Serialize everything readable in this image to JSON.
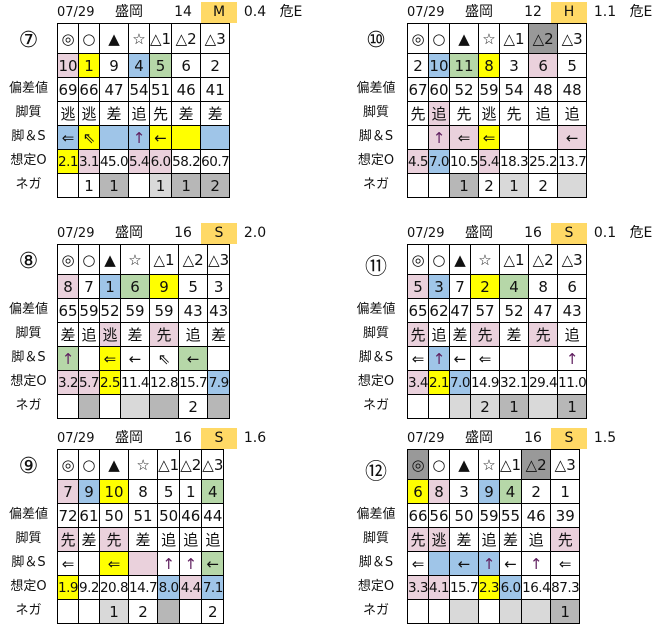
{
  "colors": {
    "p": "#ead1dc",
    "y": "#ffff00",
    "b": "#9fc5e8",
    "g": "#b6d7a8",
    "d": "#999999",
    "m": "#b7b7b7",
    "l": "#d9d9d9",
    "grade": "#ffd966"
  },
  "row_labels": [
    "偏差値",
    "脚質",
    "脚＆S",
    "想定O",
    "ネガ"
  ],
  "symbols": [
    "◎",
    "○",
    "▲",
    "☆",
    "△1",
    "△2",
    "△3"
  ],
  "panels": [
    {
      "race": "⑦",
      "date": "07/29",
      "venue": "盛岡",
      "count": "14",
      "grade": "M",
      "value": "0.4",
      "risk": "危E",
      "sym_colors": [
        "",
        "",
        "",
        "",
        "",
        "",
        ""
      ],
      "nums": [
        [
          "10",
          "p"
        ],
        [
          "1",
          "y"
        ],
        [
          "9",
          ""
        ],
        [
          "4",
          "b"
        ],
        [
          "5",
          "g"
        ],
        [
          "6",
          ""
        ],
        [
          "2",
          ""
        ]
      ],
      "dev": [
        [
          "69",
          ""
        ],
        [
          "66",
          ""
        ],
        [
          "47",
          ""
        ],
        [
          "54",
          ""
        ],
        [
          "51",
          ""
        ],
        [
          "46",
          ""
        ],
        [
          "41",
          ""
        ]
      ],
      "style": [
        [
          "逃",
          ""
        ],
        [
          "逃",
          ""
        ],
        [
          "差",
          ""
        ],
        [
          "追",
          ""
        ],
        [
          "先",
          ""
        ],
        [
          "差",
          ""
        ],
        [
          "差",
          ""
        ]
      ],
      "s": [
        [
          "⇐",
          "b"
        ],
        [
          "⇖",
          "y"
        ],
        [
          "",
          "b"
        ],
        [
          "↑",
          "b"
        ],
        [
          "←",
          "y"
        ],
        [
          "",
          "y"
        ],
        [
          "",
          "b"
        ]
      ],
      "odds": [
        [
          "2.1",
          "y"
        ],
        [
          "3.1",
          "p"
        ],
        [
          "45.0",
          ""
        ],
        [
          "5.4",
          "p"
        ],
        [
          "6.0",
          "p"
        ],
        [
          "58.2",
          ""
        ],
        [
          "60.7",
          ""
        ]
      ],
      "neg": [
        [
          "",
          ""
        ],
        [
          "1",
          ""
        ],
        [
          "1",
          "m"
        ],
        [
          "",
          ""
        ],
        [
          "1",
          "l"
        ],
        [
          "1",
          "m"
        ],
        [
          "2",
          "m"
        ]
      ]
    },
    {
      "race": "⑩",
      "date": "07/29",
      "venue": "盛岡",
      "count": "12",
      "grade": "H",
      "value": "1.1",
      "risk": "危E",
      "sym_colors": [
        "",
        "",
        "",
        "",
        "",
        "d",
        ""
      ],
      "nums": [
        [
          "2",
          ""
        ],
        [
          "10",
          "b"
        ],
        [
          "11",
          "g"
        ],
        [
          "8",
          "y"
        ],
        [
          "3",
          ""
        ],
        [
          "6",
          "p"
        ],
        [
          "5",
          ""
        ]
      ],
      "dev": [
        [
          "67",
          ""
        ],
        [
          "60",
          ""
        ],
        [
          "52",
          ""
        ],
        [
          "59",
          ""
        ],
        [
          "54",
          ""
        ],
        [
          "48",
          ""
        ],
        [
          "48",
          ""
        ]
      ],
      "style": [
        [
          "先",
          ""
        ],
        [
          "追",
          "p"
        ],
        [
          "先",
          ""
        ],
        [
          "逃",
          ""
        ],
        [
          "先",
          ""
        ],
        [
          "追",
          ""
        ],
        [
          "追",
          ""
        ]
      ],
      "s": [
        [
          "",
          ""
        ],
        [
          "↑",
          "p"
        ],
        [
          "⇐",
          "p"
        ],
        [
          "⇐",
          "y"
        ],
        [
          "",
          ""
        ],
        [
          "",
          ""
        ],
        [
          "←",
          "p"
        ]
      ],
      "odds": [
        [
          "4.5",
          "p"
        ],
        [
          "7.0",
          "b"
        ],
        [
          "10.5",
          ""
        ],
        [
          "5.4",
          "p"
        ],
        [
          "18.3",
          ""
        ],
        [
          "25.2",
          ""
        ],
        [
          "13.7",
          ""
        ]
      ],
      "neg": [
        [
          "",
          ""
        ],
        [
          "",
          ""
        ],
        [
          "1",
          "m"
        ],
        [
          "2",
          ""
        ],
        [
          "1",
          "l"
        ],
        [
          "2",
          ""
        ],
        [
          "",
          "l"
        ]
      ]
    },
    {
      "race": "⑧",
      "date": "07/29",
      "venue": "盛岡",
      "count": "16",
      "grade": "S",
      "value": "2.0",
      "risk": "",
      "sym_colors": [
        "",
        "",
        "",
        "",
        "",
        "",
        ""
      ],
      "nums": [
        [
          "8",
          "p"
        ],
        [
          "7",
          ""
        ],
        [
          "1",
          "b"
        ],
        [
          "6",
          "g"
        ],
        [
          "9",
          "y"
        ],
        [
          "5",
          ""
        ],
        [
          "3",
          ""
        ]
      ],
      "dev": [
        [
          "65",
          ""
        ],
        [
          "59",
          ""
        ],
        [
          "52",
          ""
        ],
        [
          "59",
          ""
        ],
        [
          "59",
          ""
        ],
        [
          "43",
          ""
        ],
        [
          "43",
          ""
        ]
      ],
      "style": [
        [
          "差",
          ""
        ],
        [
          "追",
          ""
        ],
        [
          "逃",
          "p"
        ],
        [
          "差",
          ""
        ],
        [
          "先",
          "p"
        ],
        [
          "追",
          ""
        ],
        [
          "差",
          ""
        ]
      ],
      "s": [
        [
          "↑",
          "g"
        ],
        [
          "",
          ""
        ],
        [
          "⇐",
          "y"
        ],
        [
          "←",
          ""
        ],
        [
          "⇖",
          ""
        ],
        [
          "←",
          "g"
        ],
        [
          "",
          ""
        ]
      ],
      "odds": [
        [
          "3.2",
          "p"
        ],
        [
          "5.7",
          "p"
        ],
        [
          "2.5",
          "y"
        ],
        [
          "11.4",
          ""
        ],
        [
          "12.8",
          ""
        ],
        [
          "15.7",
          ""
        ],
        [
          "7.9",
          "b"
        ]
      ],
      "neg": [
        [
          "",
          ""
        ],
        [
          "",
          "m"
        ],
        [
          "",
          ""
        ],
        [
          "",
          "l"
        ],
        [
          "",
          "m"
        ],
        [
          "2",
          ""
        ],
        [
          "",
          "m"
        ]
      ]
    },
    {
      "race": "⑪",
      "date": "07/29",
      "venue": "盛岡",
      "count": "16",
      "grade": "S",
      "value": "0.1",
      "risk": "危E",
      "sym_colors": [
        "",
        "",
        "",
        "",
        "",
        "",
        ""
      ],
      "nums": [
        [
          "5",
          "p"
        ],
        [
          "3",
          "b"
        ],
        [
          "7",
          ""
        ],
        [
          "2",
          "y"
        ],
        [
          "4",
          "g"
        ],
        [
          "8",
          ""
        ],
        [
          "6",
          ""
        ]
      ],
      "dev": [
        [
          "65",
          ""
        ],
        [
          "62",
          ""
        ],
        [
          "47",
          ""
        ],
        [
          "57",
          ""
        ],
        [
          "52",
          ""
        ],
        [
          "47",
          ""
        ],
        [
          "43",
          ""
        ]
      ],
      "style": [
        [
          "先",
          "p"
        ],
        [
          "追",
          ""
        ],
        [
          "差",
          ""
        ],
        [
          "先",
          "p"
        ],
        [
          "差",
          ""
        ],
        [
          "先",
          "p"
        ],
        [
          "追",
          ""
        ]
      ],
      "s": [
        [
          "⇐",
          ""
        ],
        [
          "↑",
          "b"
        ],
        [
          "←",
          ""
        ],
        [
          "⇐",
          ""
        ],
        [
          "",
          ""
        ],
        [
          "",
          ""
        ],
        [
          "↑",
          ""
        ]
      ],
      "odds": [
        [
          "3.4",
          "p"
        ],
        [
          "2.1",
          "y"
        ],
        [
          "7.0",
          "b"
        ],
        [
          "14.9",
          ""
        ],
        [
          "32.1",
          ""
        ],
        [
          "29.4",
          ""
        ],
        [
          "11.0",
          ""
        ]
      ],
      "neg": [
        [
          "",
          ""
        ],
        [
          "",
          ""
        ],
        [
          "",
          "l"
        ],
        [
          "2",
          "l"
        ],
        [
          "1",
          "m"
        ],
        [
          "",
          "l"
        ],
        [
          "1",
          "m"
        ]
      ]
    },
    {
      "race": "⑨",
      "date": "07/29",
      "venue": "盛岡",
      "count": "16",
      "grade": "S",
      "value": "1.6",
      "risk": "",
      "sym_colors": [
        "",
        "",
        "",
        "",
        "",
        "",
        ""
      ],
      "nums": [
        [
          "7",
          "p"
        ],
        [
          "9",
          "b"
        ],
        [
          "10",
          "y"
        ],
        [
          "8",
          ""
        ],
        [
          "5",
          ""
        ],
        [
          "1",
          ""
        ],
        [
          "4",
          "g"
        ]
      ],
      "dev": [
        [
          "72",
          ""
        ],
        [
          "61",
          ""
        ],
        [
          "50",
          ""
        ],
        [
          "51",
          ""
        ],
        [
          "50",
          ""
        ],
        [
          "46",
          ""
        ],
        [
          "44",
          ""
        ]
      ],
      "style": [
        [
          "先",
          "p"
        ],
        [
          "差",
          ""
        ],
        [
          "先",
          "p"
        ],
        [
          "差",
          ""
        ],
        [
          "追",
          ""
        ],
        [
          "追",
          ""
        ],
        [
          "追",
          ""
        ]
      ],
      "s": [
        [
          "⇐",
          ""
        ],
        [
          "",
          ""
        ],
        [
          "⇐",
          "y"
        ],
        [
          "",
          "p"
        ],
        [
          "↑",
          ""
        ],
        [
          "↑",
          ""
        ],
        [
          "←",
          "g"
        ]
      ],
      "odds": [
        [
          "1.9",
          "y"
        ],
        [
          "9.2",
          ""
        ],
        [
          "20.8",
          ""
        ],
        [
          "14.7",
          ""
        ],
        [
          "8.0",
          "b"
        ],
        [
          "4.4",
          "p"
        ],
        [
          "7.1",
          "b"
        ]
      ],
      "neg": [
        [
          "",
          ""
        ],
        [
          "",
          ""
        ],
        [
          "1",
          "l"
        ],
        [
          "2",
          ""
        ],
        [
          "",
          "m"
        ],
        [
          "",
          ""
        ],
        [
          "2",
          ""
        ]
      ]
    },
    {
      "race": "⑫",
      "date": "07/29",
      "venue": "盛岡",
      "count": "16",
      "grade": "S",
      "value": "1.5",
      "risk": "",
      "sym_colors": [
        "d",
        "",
        "",
        "",
        "",
        "d",
        ""
      ],
      "nums": [
        [
          "6",
          "y"
        ],
        [
          "8",
          "p"
        ],
        [
          "3",
          ""
        ],
        [
          "9",
          "b"
        ],
        [
          "4",
          "g"
        ],
        [
          "2",
          ""
        ],
        [
          "1",
          ""
        ]
      ],
      "dev": [
        [
          "66",
          ""
        ],
        [
          "56",
          ""
        ],
        [
          "50",
          ""
        ],
        [
          "59",
          ""
        ],
        [
          "55",
          ""
        ],
        [
          "46",
          ""
        ],
        [
          "39",
          ""
        ]
      ],
      "style": [
        [
          "先",
          "p"
        ],
        [
          "逃",
          "p"
        ],
        [
          "差",
          ""
        ],
        [
          "追",
          ""
        ],
        [
          "差",
          ""
        ],
        [
          "追",
          ""
        ],
        [
          "先",
          "p"
        ]
      ],
      "s": [
        [
          "⇐",
          ""
        ],
        [
          "",
          "b"
        ],
        [
          "←",
          "b"
        ],
        [
          "↑",
          "b"
        ],
        [
          "←",
          ""
        ],
        [
          "↑",
          ""
        ],
        [
          "⇐",
          ""
        ]
      ],
      "odds": [
        [
          "3.3",
          "p"
        ],
        [
          "4.1",
          "p"
        ],
        [
          "15.7",
          ""
        ],
        [
          "2.3",
          "y"
        ],
        [
          "6.0",
          "b"
        ],
        [
          "16.4",
          ""
        ],
        [
          "87.3",
          ""
        ]
      ],
      "neg": [
        [
          "",
          ""
        ],
        [
          "",
          ""
        ],
        [
          "",
          "l"
        ],
        [
          "",
          ""
        ],
        [
          "",
          "l"
        ],
        [
          "",
          "l"
        ],
        [
          "1",
          "m"
        ]
      ]
    }
  ]
}
